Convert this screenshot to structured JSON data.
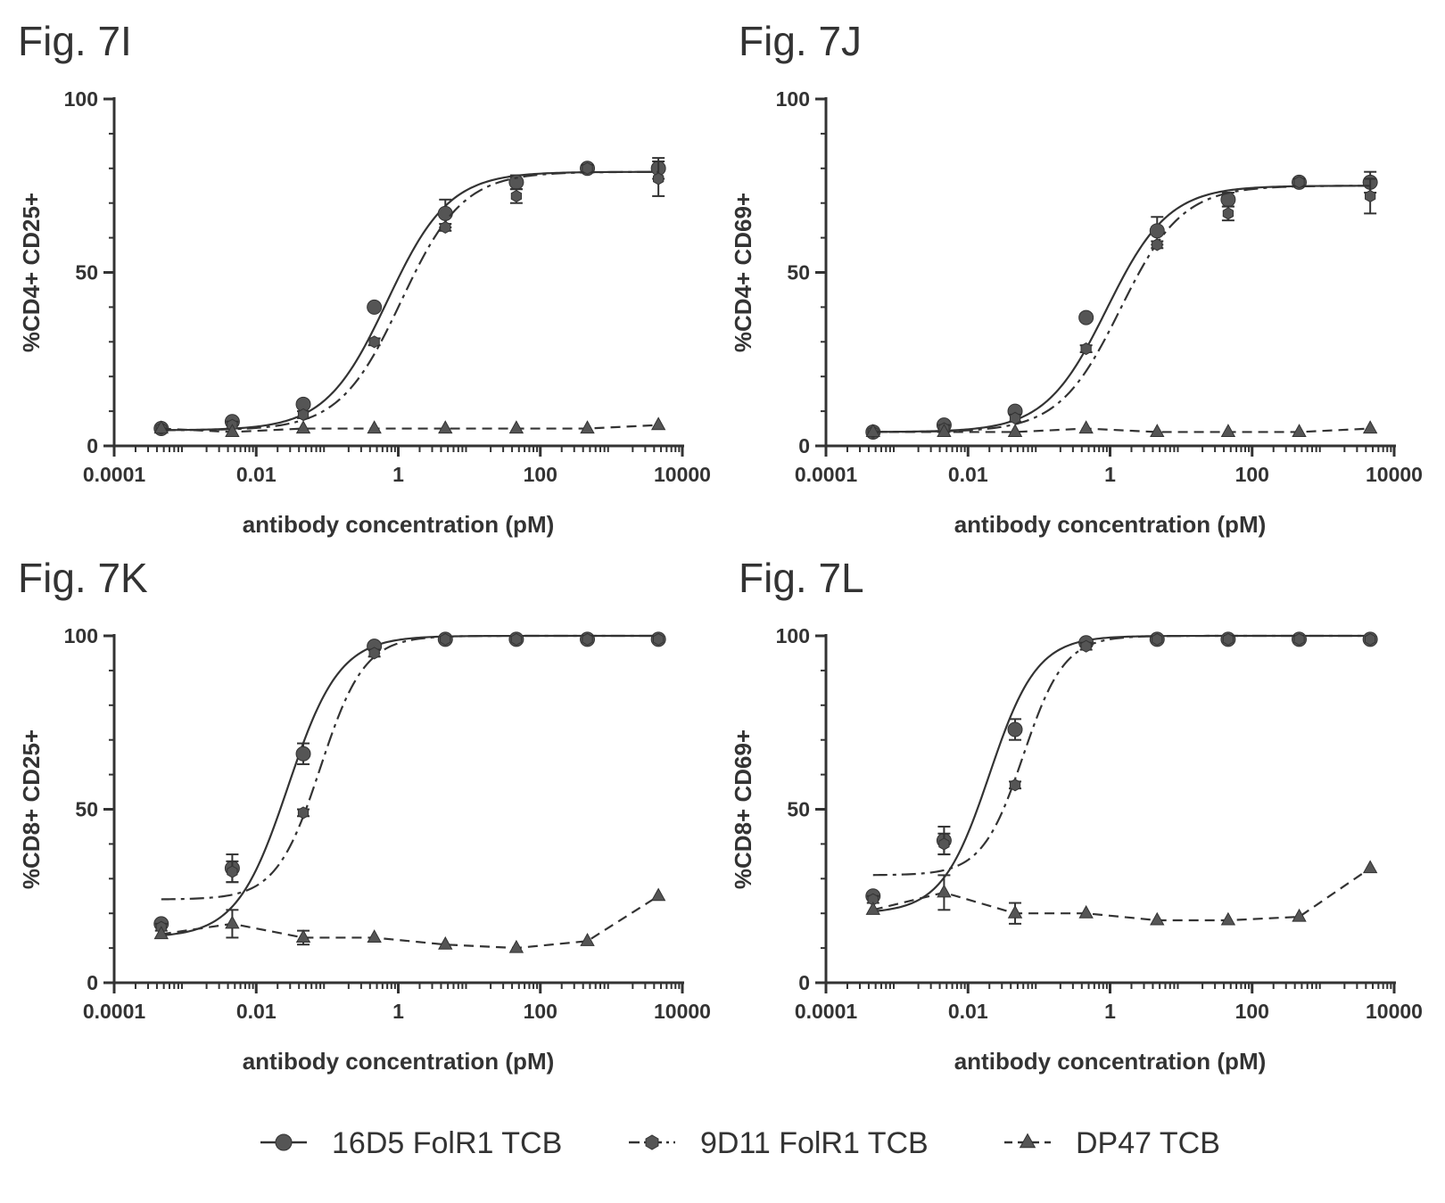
{
  "legend": [
    {
      "name": "16D5 FolR1 TCB",
      "marker": "circle",
      "dash": "solid"
    },
    {
      "name": "9D11 FolR1 TCB",
      "marker": "hexagon",
      "dash": "dashdot"
    },
    {
      "name": "DP47 TCB",
      "marker": "triangle",
      "dash": "dashed"
    }
  ],
  "colors": {
    "ink": "#333333",
    "marker": "#555555"
  },
  "chart_data": [
    {
      "type": "scatter",
      "title": "Fig. 7I",
      "xlabel": "antibody concentration (pM)",
      "ylabel": "%CD4+ CD25+",
      "xscale": "log",
      "xlim": [
        0.0001,
        10000
      ],
      "ylim": [
        0,
        100
      ],
      "xticks": [
        "0.0001",
        "0.01",
        "1",
        "100",
        "10000"
      ],
      "yticks": [
        "0",
        "50",
        "100"
      ],
      "series": [
        {
          "name": "16D5 FolR1 TCB",
          "x": [
            0.00046,
            0.0046,
            0.046,
            0.46,
            4.6,
            46,
            460,
            4600
          ],
          "y": [
            5,
            7,
            12,
            40,
            67,
            76,
            80,
            80
          ],
          "err": [
            0,
            1,
            1,
            1,
            4,
            2,
            1,
            3
          ],
          "fit": {
            "bottom": 4.5,
            "top": 79,
            "ec50": 0.7,
            "hill": 1.0
          }
        },
        {
          "name": "9D11 FolR1 TCB",
          "x": [
            0.00046,
            0.0046,
            0.046,
            0.46,
            4.6,
            46,
            460,
            4600
          ],
          "y": [
            5,
            6,
            9,
            30,
            63,
            72,
            80,
            77
          ],
          "err": [
            0,
            1,
            1,
            1,
            1,
            2,
            1,
            5
          ],
          "fit": {
            "bottom": 4.5,
            "top": 79,
            "ec50": 1.1,
            "hill": 1.0
          }
        },
        {
          "name": "DP47 TCB",
          "x": [
            0.00046,
            0.0046,
            0.046,
            0.46,
            4.6,
            46,
            460,
            4600
          ],
          "y": [
            5,
            4,
            5,
            5,
            5,
            5,
            5,
            6
          ],
          "err": [
            0,
            0,
            0,
            0,
            0,
            0,
            0,
            0
          ]
        }
      ]
    },
    {
      "type": "scatter",
      "title": "Fig. 7J",
      "xlabel": "antibody concentration (pM)",
      "ylabel": "%CD4+ CD69+",
      "xscale": "log",
      "xlim": [
        0.0001,
        10000
      ],
      "ylim": [
        0,
        100
      ],
      "xticks": [
        "0.0001",
        "0.01",
        "1",
        "100",
        "10000"
      ],
      "yticks": [
        "0",
        "50",
        "100"
      ],
      "series": [
        {
          "name": "16D5 FolR1 TCB",
          "x": [
            0.00046,
            0.0046,
            0.046,
            0.46,
            4.6,
            46,
            460,
            4600
          ],
          "y": [
            4,
            6,
            10,
            37,
            62,
            71,
            76,
            76
          ],
          "err": [
            0,
            1,
            1,
            1,
            4,
            2,
            1,
            3
          ],
          "fit": {
            "bottom": 4,
            "top": 75,
            "ec50": 0.9,
            "hill": 1.0
          }
        },
        {
          "name": "9D11 FolR1 TCB",
          "x": [
            0.00046,
            0.0046,
            0.046,
            0.46,
            4.6,
            46,
            460,
            4600
          ],
          "y": [
            4,
            5,
            8,
            28,
            58,
            67,
            76,
            72
          ],
          "err": [
            0,
            1,
            1,
            1,
            1,
            2,
            1,
            5
          ],
          "fit": {
            "bottom": 4,
            "top": 75,
            "ec50": 1.4,
            "hill": 1.0
          }
        },
        {
          "name": "DP47 TCB",
          "x": [
            0.00046,
            0.0046,
            0.046,
            0.46,
            4.6,
            46,
            460,
            4600
          ],
          "y": [
            4,
            4,
            4,
            5,
            4,
            4,
            4,
            5
          ],
          "err": [
            0,
            0,
            0,
            0,
            0,
            0,
            0,
            0
          ]
        }
      ]
    },
    {
      "type": "scatter",
      "title": "Fig. 7K",
      "xlabel": "antibody concentration (pM)",
      "ylabel": "%CD8+ CD25+",
      "xscale": "log",
      "xlim": [
        0.0001,
        10000
      ],
      "ylim": [
        0,
        100
      ],
      "xticks": [
        "0.0001",
        "0.01",
        "1",
        "100",
        "10000"
      ],
      "yticks": [
        "0",
        "50",
        "100"
      ],
      "series": [
        {
          "name": "16D5 FolR1 TCB",
          "x": [
            0.00046,
            0.0046,
            0.046,
            0.46,
            4.6,
            46,
            460,
            4600
          ],
          "y": [
            17,
            33,
            66,
            97,
            99,
            99,
            99,
            99
          ],
          "err": [
            1,
            4,
            3,
            1,
            0,
            0,
            0,
            0
          ],
          "fit": {
            "bottom": 13,
            "top": 100,
            "ec50": 0.028,
            "hill": 1.2
          }
        },
        {
          "name": "9D11 FolR1 TCB",
          "x": [
            0.00046,
            0.0046,
            0.046,
            0.46,
            4.6,
            46,
            460,
            4600
          ],
          "y": [
            16,
            32,
            49,
            95,
            99,
            99,
            99,
            99
          ],
          "err": [
            1,
            3,
            1,
            1,
            0,
            0,
            0,
            0
          ],
          "fit": {
            "bottom": 24,
            "top": 100,
            "ec50": 0.08,
            "hill": 1.4
          }
        },
        {
          "name": "DP47 TCB",
          "x": [
            0.00046,
            0.0046,
            0.046,
            0.46,
            4.6,
            46,
            460,
            4600
          ],
          "y": [
            14,
            17,
            13,
            13,
            11,
            10,
            12,
            25
          ],
          "err": [
            0,
            4,
            2,
            0,
            0,
            0,
            0,
            0
          ]
        }
      ]
    },
    {
      "type": "scatter",
      "title": "Fig. 7L",
      "xlabel": "antibody concentration (pM)",
      "ylabel": "%CD8+ CD69+",
      "xscale": "log",
      "xlim": [
        0.0001,
        10000
      ],
      "ylim": [
        0,
        100
      ],
      "xticks": [
        "0.0001",
        "0.01",
        "1",
        "100",
        "10000"
      ],
      "yticks": [
        "0",
        "50",
        "100"
      ],
      "series": [
        {
          "name": "16D5 FolR1 TCB",
          "x": [
            0.00046,
            0.0046,
            0.046,
            0.46,
            4.6,
            46,
            460,
            4600
          ],
          "y": [
            25,
            41,
            73,
            98,
            99,
            99,
            99,
            99
          ],
          "err": [
            1,
            4,
            3,
            1,
            0,
            0,
            0,
            0
          ],
          "fit": {
            "bottom": 20,
            "top": 100,
            "ec50": 0.02,
            "hill": 1.3
          }
        },
        {
          "name": "9D11 FolR1 TCB",
          "x": [
            0.00046,
            0.0046,
            0.046,
            0.46,
            4.6,
            46,
            460,
            4600
          ],
          "y": [
            24,
            40,
            57,
            97,
            99,
            99,
            99,
            99
          ],
          "err": [
            1,
            3,
            1,
            1,
            0,
            0,
            0,
            0
          ],
          "fit": {
            "bottom": 31,
            "top": 100,
            "ec50": 0.06,
            "hill": 1.5
          }
        },
        {
          "name": "DP47 TCB",
          "x": [
            0.00046,
            0.0046,
            0.046,
            0.46,
            4.6,
            46,
            460,
            4600
          ],
          "y": [
            21,
            26,
            20,
            20,
            18,
            18,
            19,
            33
          ],
          "err": [
            0,
            5,
            3,
            0,
            0,
            0,
            0,
            0
          ]
        }
      ]
    }
  ]
}
